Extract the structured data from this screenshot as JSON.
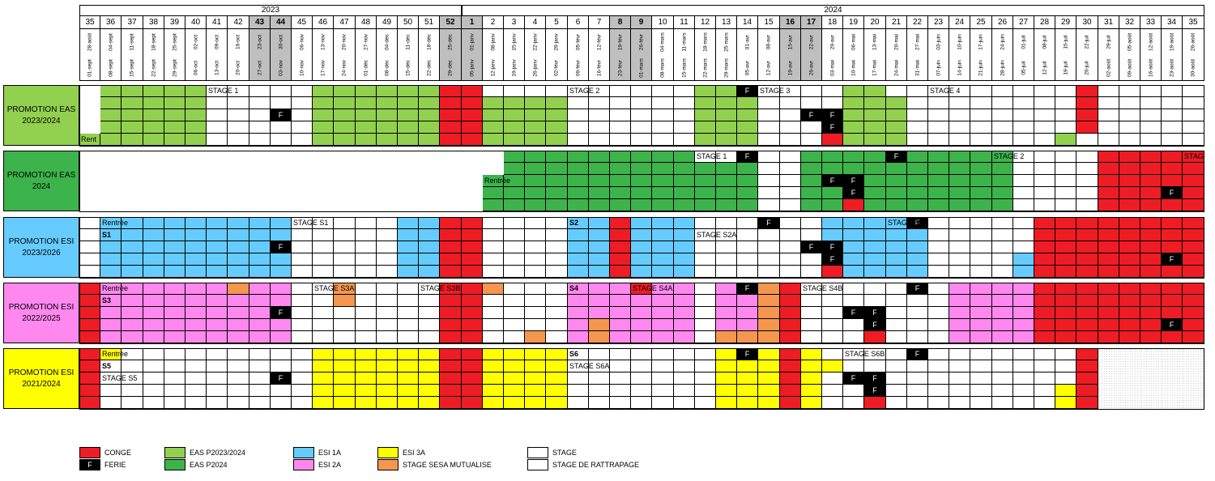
{
  "years": [
    "2023",
    "2024"
  ],
  "weeks": [
    "35",
    "36",
    "37",
    "38",
    "39",
    "40",
    "41",
    "42",
    "43",
    "44",
    "45",
    "46",
    "47",
    "48",
    "49",
    "50",
    "51",
    "52",
    "1",
    "2",
    "3",
    "4",
    "5",
    "6",
    "7",
    "8",
    "9",
    "10",
    "11",
    "12",
    "13",
    "14",
    "15",
    "16",
    "17",
    "18",
    "19",
    "20",
    "21",
    "22",
    "23",
    "24",
    "25",
    "26",
    "27",
    "28",
    "29",
    "30",
    "31",
    "32",
    "33",
    "34",
    "35"
  ],
  "holiday_weeks": [
    "43",
    "44",
    "52",
    "1",
    "8",
    "9",
    "16",
    "17"
  ],
  "starts": [
    "28-août",
    "04-sept",
    "11-sept",
    "18-sept",
    "25-sept",
    "02-oct",
    "09-oct",
    "16-oct",
    "23-oct",
    "30-oct",
    "06-nov",
    "13-nov",
    "20-nov",
    "27-nov",
    "04-déc",
    "11-déc",
    "18-déc",
    "25-déc",
    "01-janv",
    "08-janv",
    "15-janv",
    "22-janv",
    "29-janv",
    "05-févr",
    "12-févr",
    "19-févr",
    "26-févr",
    "04-mars",
    "11-mars",
    "18-mars",
    "25-mars",
    "01-avr",
    "08-avr",
    "15-avr",
    "22-avr",
    "29-avr",
    "06-mai",
    "13-mai",
    "20-mai",
    "27-mai",
    "03-juin",
    "10-juin",
    "17-juin",
    "24-juin",
    "01-juil",
    "08-juil",
    "15-juil",
    "22-juil",
    "29-juil",
    "05-août",
    "12-août",
    "19-août",
    "26-août"
  ],
  "ends": [
    "01-sept",
    "08-sept",
    "15-sept",
    "22-sept",
    "29-sept",
    "06-oct",
    "13-oct",
    "20-oct",
    "27-oct",
    "03-nov",
    "10-nov",
    "17-nov",
    "24-nov",
    "01-déc",
    "08-déc",
    "15-déc",
    "22-déc",
    "29-déc",
    "05-janv",
    "12-janv",
    "19-janv",
    "26-janv",
    "02-févr",
    "09-févr",
    "16-févr",
    "23-févr",
    "01-mars",
    "08-mars",
    "15-mars",
    "22-mars",
    "29-mars",
    "05-avr",
    "12-avr",
    "19-avr",
    "26-avr",
    "03-mai",
    "10-mai",
    "17-mai",
    "24-mai",
    "31-mai",
    "07-juin",
    "14-juin",
    "21-juin",
    "28-juin",
    "05-juil",
    "12-juil",
    "19-juil",
    "26-juil",
    "02-août",
    "09-août",
    "16-août",
    "23-août",
    "30-août"
  ],
  "colors": {
    "conge": "#ee1c24",
    "ferie": "#000000",
    "eas1": "#92d050",
    "eas2": "#3cb44b",
    "esi1": "#66ccff",
    "esi2": "#ff88ee",
    "esi3": "#ffff00",
    "sesa": "#f5964f",
    "stage": "#ffffff",
    "grey": "#bfbfbf"
  },
  "ferie_mark": "F",
  "promotions": [
    {
      "name": "PROMOTION EAS\n2023/2024",
      "color_key": "eas1",
      "rows": [
        "TGGGGGSSSSSGGGGGGCCSSSSSSSSSSGGFSSSSGGSSSSSSSSSC",
        "TGGGGGSSSSSGGGGGGCCGGGGSSSSSSGGGSSSSGGGSSSSSSSSC",
        "TGGGGGSSSFSGGGGGGCCGGGGSSSSSSGGGSSFFGGGSSSSSSSSC",
        "TGGGGGSSSSSGGGGGGCCGGGGSSSSSSGGGSSSFGGGSSSSSSSSC",
        "GGGGGGSSSSSGGGGGGCCGGGGSSSSSSGGGSSSCGGGSSSSSSSGS"
      ],
      "texts": [
        {
          "row": 0,
          "col": 6,
          "text": "STAGE 1",
          "bold": false
        },
        {
          "row": 0,
          "col": 23,
          "text": "STAGE 2",
          "bold": false
        },
        {
          "row": 0,
          "col": 32,
          "text": "STAGE 3",
          "bold": false
        },
        {
          "row": 0,
          "col": 40,
          "text": "STAGE 4",
          "bold": false
        },
        {
          "row": 4,
          "col": 0,
          "text": "Rent",
          "bold": false
        }
      ]
    },
    {
      "name": "PROMOTION EAS\n2024",
      "color_key": "eas2",
      "rows": [
        "TTTTTTTTTTTTTTTTTTTTGGGGGGGGGSSFSSGGGGFGGGGGSSSSCCCCCS",
        "TTTTTTTTTTTTTTTTTTTTGGGGGGGGGGGGSSGGGGGGGGGGSSSSCCCCC",
        "TTTTTTTTTTTTTTTTTTTGGGGGGGGGGGGGSSGFFGGGGGGGSSSSCCCCC",
        "TTTTTTTTTTTTTTTTTTTGGGGGGGGGGGGGSSGGFGGGGGGGSSSSCCCFC",
        "TTTTTTTTTTTTTTTTTTTGGGGGGGGGGGGGSSGGCGGGGGGGSSSSCCCCC"
      ],
      "texts": [
        {
          "row": 0,
          "col": 29,
          "text": "STAGE 1",
          "bold": false
        },
        {
          "row": 0,
          "col": 43,
          "text": "STAGE 2",
          "bold": false
        },
        {
          "row": 0,
          "col": 52,
          "text": "STAG",
          "bold": false
        },
        {
          "row": 2,
          "col": 19,
          "text": "Rentrée",
          "bold": false
        }
      ]
    },
    {
      "name": "PROMOTION ESI\n2023/2026",
      "color_key": "esi1",
      "rows": [
        "SGGGGGGGGGSSSSSGGCCSSSSGGCGGGSSSFSSGGGGFSSSSSCCCCCCCCC",
        "SGGGGGGGGGSSSSSGGCCSSSSGGCGGGSSSSSSGGGGGSSSSSCCCCCCCCC",
        "SGGGGGGGGFSSSSSGGCCSSSSGGCGGGSSSSSFFGGGGSSSSSCCCCCCCCC",
        "SGGGGGGGGGSSSSSGGCCSSSSGGCGGGSSSSSSFGGGGSSSSGCCCCCCFCC",
        "SGGGGGGGGGSSSSSGGCCSSSSGGCGGGSSSSSSCGGGGSSSSGCCCCCCCCC"
      ],
      "texts": [
        {
          "row": 0,
          "col": 1,
          "text": "Rentrée",
          "bold": false
        },
        {
          "row": 0,
          "col": 10,
          "text": "STAGE S1",
          "bold": false
        },
        {
          "row": 0,
          "col": 23,
          "text": "S2",
          "bold": true
        },
        {
          "row": 0,
          "col": 38,
          "text": "STAGE S2B",
          "bold": false
        },
        {
          "row": 1,
          "col": 1,
          "text": "S1",
          "bold": true
        },
        {
          "row": 1,
          "col": 29,
          "text": "STAGE S2A",
          "bold": false
        }
      ]
    },
    {
      "name": "PROMOTION ESI\n2022/2025",
      "color_key": "esi2",
      "rows": [
        "CGGGGGGOGGSSOSSSSCCOSSSGGGCGGSGFOCSSSSSFSGGGGCCCCCCCCC",
        "CGGGGGGGGGSSOSSSSCCSSSSGGGGGGSGGOCSSSSSSSGGGGCCCCCCCCC",
        "CGGGGGGGGFSSSSSSSCCSSSSGGGGGGSGGOCSSFFSSSGGGGCCCCCCCCC",
        "CGGGGGGGGGSSSSSSSCCSSSSGOGGGGSGGOCSSSFSSSGGGGCCCCCCFCC",
        "CGGGGGGGGGSSSSSSSCCSSOSGOGGGGSOOOCSSSCSSSGGGGCCCCCCCCC"
      ],
      "texts": [
        {
          "row": 0,
          "col": 1,
          "text": "Rentrée",
          "bold": false
        },
        {
          "row": 0,
          "col": 11,
          "text": "STAGE S3A",
          "bold": false
        },
        {
          "row": 0,
          "col": 16,
          "text": "STAGE S3B",
          "bold": false
        },
        {
          "row": 0,
          "col": 23,
          "text": "S4",
          "bold": true
        },
        {
          "row": 0,
          "col": 26,
          "text": "STAGE S4A",
          "bold": false
        },
        {
          "row": 0,
          "col": 34,
          "text": "STAGE S4B",
          "bold": false
        },
        {
          "row": 1,
          "col": 1,
          "text": "S3",
          "bold": true
        }
      ]
    },
    {
      "name": "PROMOTION ESI\n2021/2024",
      "color_key": "esi3",
      "rows": [
        "CGSSSSSSSSSGGGGGGCCGGGGSSSSSSSGFGCGSSSSFSSSSSSSCDDDDDDDD",
        "CSSSSSSSSSSGGGGGGCCGGGGSSSSSSSGGGCGGSSSSSSSSSSSCDDDDDDDD",
        "CSSSSSSSSFSGGGGGGCCGGGGSSSSSSSGGGCGSFFSSSSSSSSSCDDDDDDDD",
        "CSSSSSSSSSSGGGGGGCCGGGGSSSSSSSGGGCGSSFSSSSSSSSGCDDDDDDDD",
        "CSSSSSSSSSSGGGGGGCCGGGGSSSSSSSGGGCGSSCSSSSSSSSGCDDDDDDDD"
      ],
      "texts": [
        {
          "row": 0,
          "col": 1,
          "text": "Rentrée",
          "bold": false
        },
        {
          "row": 0,
          "col": 36,
          "text": "STAGE S6B",
          "bold": false
        },
        {
          "row": 0,
          "col": 23,
          "text": "S6",
          "bold": true
        },
        {
          "row": 1,
          "col": 1,
          "text": "S5",
          "bold": true
        },
        {
          "row": 1,
          "col": 23,
          "text": "STAGE S6A",
          "bold": false
        },
        {
          "row": 2,
          "col": 1,
          "text": "STAGE S5",
          "bold": false
        }
      ]
    }
  ],
  "legend": [
    {
      "key": "conge",
      "label": "CONGE",
      "mark": ""
    },
    {
      "key": "ferie",
      "label": "FERIE",
      "mark": "F"
    },
    {
      "key": "eas1",
      "label": "EAS P2023/2024",
      "mark": ""
    },
    {
      "key": "eas2",
      "label": "EAS P2024",
      "mark": ""
    },
    {
      "key": "esi1",
      "label": "ESI 1A",
      "mark": ""
    },
    {
      "key": "esi2",
      "label": "ESI 2A",
      "mark": ""
    },
    {
      "key": "esi3",
      "label": "ESI 3A",
      "mark": ""
    },
    {
      "key": "sesa",
      "label": "STAGE SESA MUTUALISE",
      "mark": ""
    },
    {
      "key": "stage",
      "label": "STAGE",
      "mark": ""
    },
    {
      "key": "stage",
      "label": "STAGE DE RATTRAPAGE",
      "mark": ""
    }
  ]
}
